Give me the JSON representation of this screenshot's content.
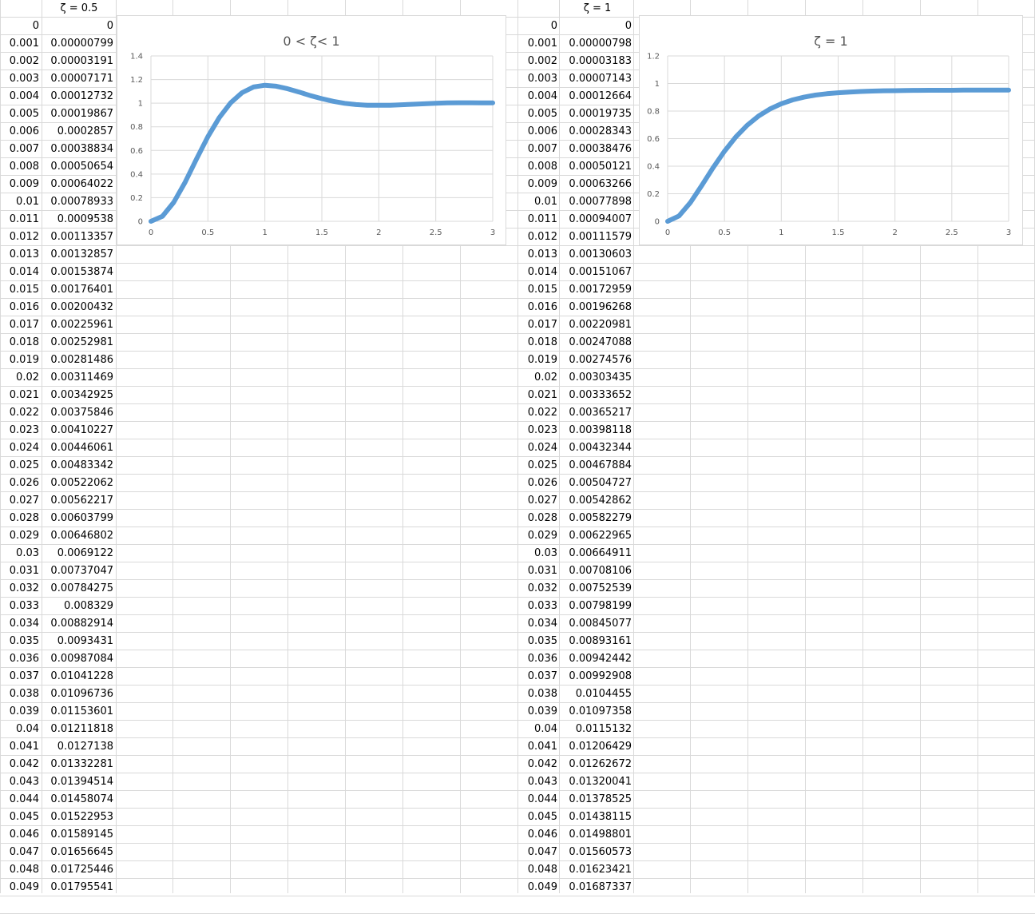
{
  "sheet": {
    "block1": {
      "header": "ζ = 0.5",
      "t": [
        "0",
        "0.001",
        "0.002",
        "0.003",
        "0.004",
        "0.005",
        "0.006",
        "0.007",
        "0.008",
        "0.009",
        "0.01",
        "0.011",
        "0.012",
        "0.013",
        "0.014",
        "0.015",
        "0.016",
        "0.017",
        "0.018",
        "0.019",
        "0.02",
        "0.021",
        "0.022",
        "0.023",
        "0.024",
        "0.025",
        "0.026",
        "0.027",
        "0.028",
        "0.029",
        "0.03",
        "0.031",
        "0.032",
        "0.033",
        "0.034",
        "0.035",
        "0.036",
        "0.037",
        "0.038",
        "0.039",
        "0.04",
        "0.041",
        "0.042",
        "0.043",
        "0.044",
        "0.045",
        "0.046",
        "0.047",
        "0.048",
        "0.049"
      ],
      "y": [
        "0",
        "0.00000799",
        "0.00003191",
        "0.00007171",
        "0.00012732",
        "0.00019867",
        "0.0002857",
        "0.00038834",
        "0.00050654",
        "0.00064022",
        "0.00078933",
        "0.0009538",
        "0.00113357",
        "0.00132857",
        "0.00153874",
        "0.00176401",
        "0.00200432",
        "0.00225961",
        "0.00252981",
        "0.00281486",
        "0.00311469",
        "0.00342925",
        "0.00375846",
        "0.00410227",
        "0.00446061",
        "0.00483342",
        "0.00522062",
        "0.00562217",
        "0.00603799",
        "0.00646802",
        "0.0069122",
        "0.00737047",
        "0.00784275",
        "0.008329",
        "0.00882914",
        "0.0093431",
        "0.00987084",
        "0.01041228",
        "0.01096736",
        "0.01153601",
        "0.01211818",
        "0.0127138",
        "0.01332281",
        "0.01394514",
        "0.01458074",
        "0.01522953",
        "0.01589145",
        "0.01656645",
        "0.01725446",
        "0.01795541"
      ]
    },
    "block2": {
      "header": "ζ = 1",
      "t": [
        "0",
        "0.001",
        "0.002",
        "0.003",
        "0.004",
        "0.005",
        "0.006",
        "0.007",
        "0.008",
        "0.009",
        "0.01",
        "0.011",
        "0.012",
        "0.013",
        "0.014",
        "0.015",
        "0.016",
        "0.017",
        "0.018",
        "0.019",
        "0.02",
        "0.021",
        "0.022",
        "0.023",
        "0.024",
        "0.025",
        "0.026",
        "0.027",
        "0.028",
        "0.029",
        "0.03",
        "0.031",
        "0.032",
        "0.033",
        "0.034",
        "0.035",
        "0.036",
        "0.037",
        "0.038",
        "0.039",
        "0.04",
        "0.041",
        "0.042",
        "0.043",
        "0.044",
        "0.045",
        "0.046",
        "0.047",
        "0.048",
        "0.049"
      ],
      "y": [
        "0",
        "0.00000798",
        "0.00003183",
        "0.00007143",
        "0.00012664",
        "0.00019735",
        "0.00028343",
        "0.00038476",
        "0.00050121",
        "0.00063266",
        "0.00077898",
        "0.00094007",
        "0.00111579",
        "0.00130603",
        "0.00151067",
        "0.00172959",
        "0.00196268",
        "0.00220981",
        "0.00247088",
        "0.00274576",
        "0.00303435",
        "0.00333652",
        "0.00365217",
        "0.00398118",
        "0.00432344",
        "0.00467884",
        "0.00504727",
        "0.00542862",
        "0.00582279",
        "0.00622965",
        "0.00664911",
        "0.00708106",
        "0.00752539",
        "0.00798199",
        "0.00845077",
        "0.00893161",
        "0.00942442",
        "0.00992908",
        "0.0104455",
        "0.01097358",
        "0.0115132",
        "0.01206429",
        "0.01262672",
        "0.01320041",
        "0.01378525",
        "0.01438115",
        "0.01498801",
        "0.01560573",
        "0.01623421",
        "0.01687337"
      ]
    }
  },
  "colors": {
    "series": "#5b9bd5",
    "gridline": "#d9d9d9",
    "axis_text": "#595959"
  },
  "chart_data": [
    {
      "type": "line",
      "title": "0 < ζ< 1",
      "xlabel": "",
      "ylabel": "",
      "xlim": [
        0,
        3
      ],
      "ylim": [
        0,
        1.4
      ],
      "xticks": [
        "0",
        "0.5",
        "1",
        "1.5",
        "2",
        "2.5",
        "3"
      ],
      "yticks": [
        "0",
        "0.2",
        "0.4",
        "0.6",
        "0.8",
        "1",
        "1.2",
        "1.4"
      ],
      "grid": true,
      "legend": "none",
      "series": [
        {
          "x": [
            0,
            0.1,
            0.2,
            0.3,
            0.4,
            0.5,
            0.6,
            0.7,
            0.8,
            0.9,
            1.0,
            1.1,
            1.2,
            1.3,
            1.4,
            1.5,
            1.6,
            1.7,
            1.8,
            1.9,
            2.0,
            2.1,
            2.2,
            2.3,
            2.4,
            2.5,
            2.6,
            2.7,
            2.8,
            2.9,
            3.0
          ],
          "y": [
            0,
            0.042,
            0.16,
            0.331,
            0.528,
            0.716,
            0.878,
            1.004,
            1.089,
            1.137,
            1.152,
            1.144,
            1.122,
            1.094,
            1.064,
            1.038,
            1.016,
            0.999,
            0.988,
            0.983,
            0.982,
            0.983,
            0.987,
            0.991,
            0.995,
            0.999,
            1.002,
            1.004,
            1.004,
            1.003,
            1.002
          ]
        }
      ]
    },
    {
      "type": "line",
      "title": "ζ = 1",
      "xlabel": "",
      "ylabel": "",
      "xlim": [
        0,
        3
      ],
      "ylim": [
        0,
        1.2
      ],
      "xticks": [
        "0",
        "0.5",
        "1",
        "1.5",
        "2",
        "2.5",
        "3"
      ],
      "yticks": [
        "0",
        "0.2",
        "0.4",
        "0.6",
        "0.8",
        "1",
        "1.2"
      ],
      "grid": true,
      "legend": "none",
      "series": [
        {
          "x": [
            0,
            0.1,
            0.2,
            0.3,
            0.4,
            0.5,
            0.6,
            0.7,
            0.8,
            0.9,
            1.0,
            1.1,
            1.2,
            1.3,
            1.4,
            1.5,
            1.6,
            1.7,
            1.8,
            1.9,
            2.0,
            2.1,
            2.2,
            2.3,
            2.4,
            2.5,
            2.6,
            2.7,
            2.8,
            2.9,
            3.0
          ],
          "y": [
            0,
            0.039,
            0.136,
            0.26,
            0.389,
            0.509,
            0.612,
            0.697,
            0.764,
            0.815,
            0.853,
            0.881,
            0.901,
            0.916,
            0.926,
            0.933,
            0.938,
            0.942,
            0.945,
            0.947,
            0.948,
            0.949,
            0.95,
            0.951,
            0.951,
            0.951,
            0.952,
            0.952,
            0.952,
            0.952,
            0.952
          ]
        }
      ]
    }
  ]
}
